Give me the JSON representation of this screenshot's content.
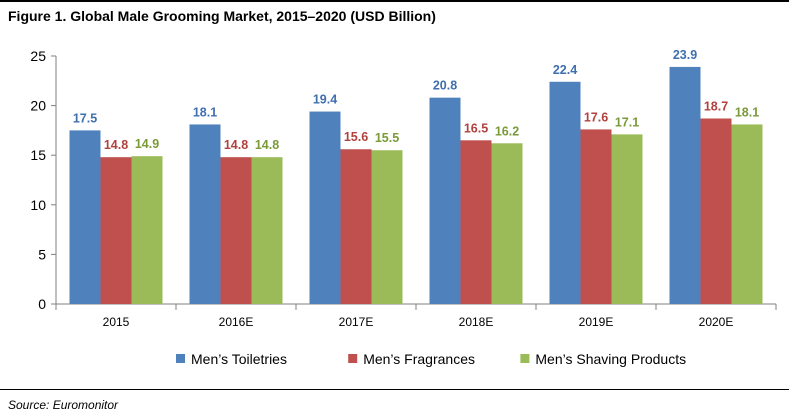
{
  "figure": {
    "title": "Figure 1. Global Male Grooming Market, 2015–2020 (USD Billion)",
    "source": "Source: Euromonitor"
  },
  "chart_data": {
    "type": "bar",
    "categories": [
      "2015",
      "2016E",
      "2017E",
      "2018E",
      "2019E",
      "2020E"
    ],
    "series": [
      {
        "name": "Men’s Toiletries",
        "color": "#4F81BD",
        "label_color": "#3F6FAE",
        "values": [
          17.5,
          18.1,
          19.4,
          20.8,
          22.4,
          23.9
        ]
      },
      {
        "name": "Men’s Fragrances",
        "color": "#C0504D",
        "label_color": "#B0413E",
        "values": [
          14.8,
          14.8,
          15.6,
          16.5,
          17.6,
          18.7
        ]
      },
      {
        "name": "Men’s Shaving Products",
        "color": "#9BBB59",
        "label_color": "#7A9A3A",
        "values": [
          14.9,
          14.8,
          15.5,
          16.2,
          17.1,
          18.1
        ]
      }
    ],
    "yticks": [
      0,
      5,
      10,
      15,
      20,
      25
    ],
    "ylim": [
      0,
      25
    ],
    "grid": false,
    "legend": "bottom",
    "title": "",
    "xlabel": "",
    "ylabel": ""
  }
}
